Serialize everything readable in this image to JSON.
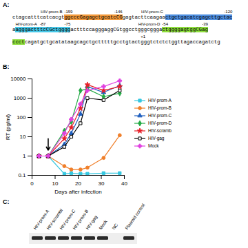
{
  "panel_a": {
    "label": "A:",
    "lines": [
      [
        {
          "text": "ctagcatttcatcacgt"
        },
        {
          "text": "ggcccGagagctgcatcCG",
          "highlight": "#f39a3c",
          "name": "HIV-prom-B",
          "start": "-159",
          "end": "-146"
        },
        {
          "text": "gagtacttcaagaa"
        },
        {
          "text": "ctgctgacatcgagcttgctac",
          "highlight": "#4f8fe0",
          "name": "HIV-prom-C",
          "end": "-120"
        }
      ],
      [
        {
          "text": "a"
        },
        {
          "text": "agggactttcCGctgggg",
          "highlight": "#46c8e8",
          "name": "HIV-prom-A",
          "start": "-87",
          "end": "-75"
        },
        {
          "text": "actttccagggaggCGtggcctgggcggga"
        },
        {
          "text": "ctggggagtggCGag",
          "highlight": "#8ede3c",
          "name": "HIV-prom-D",
          "start": "-54",
          "end": "-39"
        }
      ],
      [
        {
          "text": "ccct",
          "highlight": "#8ede3c"
        },
        {
          "text": "cagatgctgcatataagcagctgctttttgcctgtact"
        },
        {
          "text": "gggtctctctgg",
          "start": "+1"
        },
        {
          "text": "ttagaccagatctg"
        }
      ]
    ]
  },
  "chart_data": {
    "type": "line",
    "title": "B:",
    "x_label": "Days after infection",
    "y_label": "RT (pg/ml)",
    "x": [
      3,
      7,
      14,
      17,
      21,
      24,
      31,
      38
    ],
    "series": [
      {
        "name": "HIV-prom-A",
        "color": "#35c7e0",
        "marker": "square",
        "values": [
          1,
          1,
          0.12,
          0.13,
          0.12,
          0.12,
          0.13,
          0.13
        ]
      },
      {
        "name": "HIV-prom-B",
        "color": "#f07f2a",
        "marker": "circle",
        "values": [
          1,
          1,
          0.3,
          0.2,
          0.2,
          0.25,
          0.8,
          12
        ]
      },
      {
        "name": "HIV-prom-C",
        "color": "#1f5fbf",
        "marker": "triangle",
        "values": [
          1,
          1,
          4,
          15,
          150,
          4000,
          2000,
          4500
        ]
      },
      {
        "name": "HIV-prom-D",
        "color": "#22aa44",
        "marker": "diamond",
        "values": [
          1,
          1,
          20,
          60,
          2500,
          3000,
          1200,
          1800
        ]
      },
      {
        "name": "HIV-scramb",
        "color": "#e8202a",
        "marker": "star",
        "values": [
          1,
          1,
          8,
          30,
          300,
          5000,
          2500,
          4000
        ]
      },
      {
        "name": "HIV-gag",
        "color": "#000000",
        "marker": "open-square",
        "values": [
          1,
          1,
          3,
          10,
          50,
          1000,
          800,
          2500
        ]
      },
      {
        "name": "Mock",
        "color": "#e040e0",
        "marker": "cross",
        "values": [
          1,
          1,
          15,
          80,
          500,
          2500,
          4000,
          8000
        ]
      }
    ],
    "xlim": [
      0,
      40
    ],
    "xticks": [
      0,
      10,
      20,
      30,
      40
    ],
    "ylim": [
      0.1,
      10000
    ],
    "yticks": [
      0.1,
      1,
      10,
      100,
      1000,
      10000
    ],
    "log": "y",
    "grid": false,
    "legend": "right",
    "annotations": [
      {
        "type": "arrow",
        "x": 7,
        "y_start": 8,
        "y_end": 2
      }
    ]
  },
  "panel_c": {
    "label": "C:",
    "lanes": [
      {
        "name": "HIV-prom-A",
        "band": true
      },
      {
        "name": "HIV-scrambl",
        "band": true
      },
      {
        "name": "HIV-prom-C",
        "band": true
      },
      {
        "name": "HIV-prom-B",
        "band": true
      },
      {
        "name": "HIV-gag",
        "band": true
      },
      {
        "name": "Mock",
        "band": true
      },
      {
        "name": "NC",
        "band": false
      },
      {
        "name": "Plasmid control",
        "band": true
      }
    ]
  }
}
